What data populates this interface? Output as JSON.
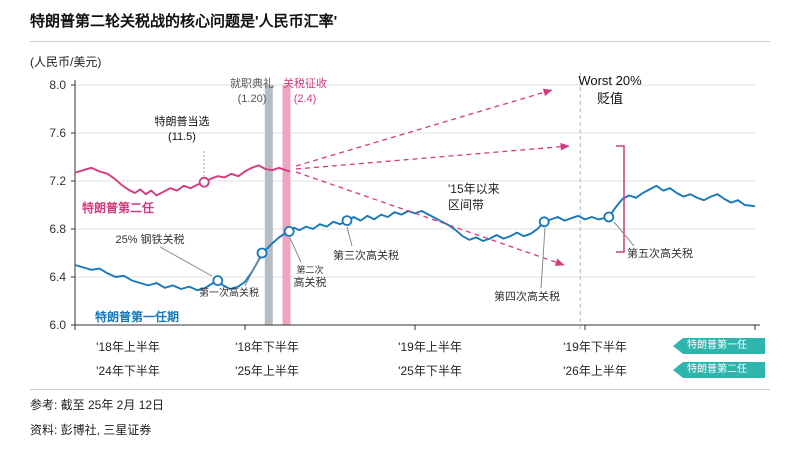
{
  "title": "特朗普第二轮关税战的核心问题是'人民币汇率'",
  "y_axis_unit": "(人民币/美元)",
  "annotations": {
    "elected_date": "(11.5)",
    "tariff2_l1": "第二次",
    "tariff2_l2": "高关税",
    "worst_l1": "Worst 20%",
    "worst_l2": "贬值",
    "range_l1": "'15年以来",
    "range_l2": "区间带"
  },
  "badges": [
    {
      "label": "特朗普第一任",
      "color": "#2fb5ae"
    },
    {
      "label": "特朗普第二任",
      "color": "#2fb5ae"
    }
  ],
  "footer": {
    "reference": "参考: 截至 25年 2月 12日",
    "source": "资料: 彭博社, 三星证券"
  },
  "chart_data": {
    "type": "line",
    "title": "特朗普第二轮关税战的核心问题是'人民币汇率'",
    "ylabel": "(人民币/美元)",
    "ylim": [
      6.0,
      8.0
    ],
    "yticks": [
      6.0,
      6.4,
      6.8,
      7.2,
      7.6,
      8.0
    ],
    "ytick_labels": [
      "6.0",
      "6.4",
      "6.8",
      "7.2",
      "7.6",
      "8.0"
    ],
    "x_axis_rows": [
      [
        "'18年上半年",
        "'18年下半年",
        "'19年上半年",
        "'19年下半年"
      ],
      [
        "'24年下半年",
        "'25年上半年",
        "'25年下半年",
        "'26年上半年"
      ]
    ],
    "projection_x": 0.743,
    "series": [
      {
        "name": "特朗普第一任期",
        "color": "#1779ba",
        "points": [
          [
            0,
            6.5
          ],
          [
            0.012,
            6.48
          ],
          [
            0.024,
            6.46
          ],
          [
            0.036,
            6.47
          ],
          [
            0.048,
            6.43
          ],
          [
            0.06,
            6.4
          ],
          [
            0.072,
            6.41
          ],
          [
            0.084,
            6.37
          ],
          [
            0.096,
            6.35
          ],
          [
            0.108,
            6.33
          ],
          [
            0.12,
            6.35
          ],
          [
            0.132,
            6.31
          ],
          [
            0.144,
            6.33
          ],
          [
            0.156,
            6.3
          ],
          [
            0.168,
            6.32
          ],
          [
            0.18,
            6.29
          ],
          [
            0.192,
            6.31
          ],
          [
            0.2,
            6.34
          ],
          [
            0.21,
            6.37
          ],
          [
            0.218,
            6.33
          ],
          [
            0.228,
            6.3
          ],
          [
            0.24,
            6.32
          ],
          [
            0.25,
            6.36
          ],
          [
            0.26,
            6.44
          ],
          [
            0.27,
            6.54
          ],
          [
            0.275,
            6.6
          ],
          [
            0.283,
            6.64
          ],
          [
            0.29,
            6.68
          ],
          [
            0.3,
            6.73
          ],
          [
            0.308,
            6.76
          ],
          [
            0.315,
            6.78
          ],
          [
            0.322,
            6.81
          ],
          [
            0.33,
            6.79
          ],
          [
            0.34,
            6.82
          ],
          [
            0.35,
            6.8
          ],
          [
            0.36,
            6.84
          ],
          [
            0.37,
            6.82
          ],
          [
            0.38,
            6.86
          ],
          [
            0.39,
            6.84
          ],
          [
            0.4,
            6.87
          ],
          [
            0.41,
            6.9
          ],
          [
            0.42,
            6.87
          ],
          [
            0.43,
            6.91
          ],
          [
            0.44,
            6.88
          ],
          [
            0.45,
            6.92
          ],
          [
            0.46,
            6.9
          ],
          [
            0.47,
            6.94
          ],
          [
            0.48,
            6.92
          ],
          [
            0.49,
            6.95
          ],
          [
            0.5,
            6.93
          ],
          [
            0.51,
            6.95
          ],
          [
            0.52,
            6.92
          ],
          [
            0.53,
            6.89
          ],
          [
            0.54,
            6.86
          ],
          [
            0.55,
            6.83
          ],
          [
            0.56,
            6.79
          ],
          [
            0.57,
            6.74
          ],
          [
            0.58,
            6.71
          ],
          [
            0.59,
            6.73
          ],
          [
            0.6,
            6.7
          ],
          [
            0.61,
            6.72
          ],
          [
            0.62,
            6.75
          ],
          [
            0.63,
            6.72
          ],
          [
            0.64,
            6.74
          ],
          [
            0.65,
            6.77
          ],
          [
            0.66,
            6.74
          ],
          [
            0.67,
            6.76
          ],
          [
            0.68,
            6.8
          ],
          [
            0.69,
            6.86
          ],
          [
            0.7,
            6.88
          ],
          [
            0.71,
            6.9
          ],
          [
            0.72,
            6.87
          ],
          [
            0.73,
            6.89
          ],
          [
            0.74,
            6.91
          ],
          [
            0.75,
            6.88
          ],
          [
            0.76,
            6.9
          ],
          [
            0.77,
            6.88
          ],
          [
            0.785,
            6.9
          ],
          [
            0.795,
            6.98
          ],
          [
            0.805,
            7.05
          ],
          [
            0.815,
            7.08
          ],
          [
            0.825,
            7.06
          ],
          [
            0.835,
            7.1
          ],
          [
            0.845,
            7.13
          ],
          [
            0.855,
            7.16
          ],
          [
            0.865,
            7.12
          ],
          [
            0.875,
            7.14
          ],
          [
            0.885,
            7.1
          ],
          [
            0.895,
            7.07
          ],
          [
            0.905,
            7.09
          ],
          [
            0.915,
            7.06
          ],
          [
            0.925,
            7.04
          ],
          [
            0.935,
            7.07
          ],
          [
            0.945,
            7.09
          ],
          [
            0.955,
            7.05
          ],
          [
            0.965,
            7.02
          ],
          [
            0.975,
            7.04
          ],
          [
            0.985,
            7.0
          ],
          [
            1,
            6.99
          ]
        ]
      },
      {
        "name": "特朗普第二任",
        "color": "#d23c7e",
        "points": [
          [
            0,
            7.27
          ],
          [
            0.012,
            7.29
          ],
          [
            0.024,
            7.31
          ],
          [
            0.036,
            7.28
          ],
          [
            0.048,
            7.26
          ],
          [
            0.058,
            7.22
          ],
          [
            0.068,
            7.17
          ],
          [
            0.078,
            7.13
          ],
          [
            0.088,
            7.1
          ],
          [
            0.096,
            7.13
          ],
          [
            0.104,
            7.09
          ],
          [
            0.112,
            7.12
          ],
          [
            0.12,
            7.08
          ],
          [
            0.13,
            7.11
          ],
          [
            0.14,
            7.14
          ],
          [
            0.15,
            7.12
          ],
          [
            0.16,
            7.16
          ],
          [
            0.17,
            7.14
          ],
          [
            0.18,
            7.17
          ],
          [
            0.19,
            7.19
          ],
          [
            0.2,
            7.22
          ],
          [
            0.21,
            7.24
          ],
          [
            0.22,
            7.23
          ],
          [
            0.23,
            7.26
          ],
          [
            0.24,
            7.24
          ],
          [
            0.25,
            7.28
          ],
          [
            0.26,
            7.31
          ],
          [
            0.27,
            7.33
          ],
          [
            0.28,
            7.3
          ],
          [
            0.29,
            7.29
          ],
          [
            0.3,
            7.31
          ],
          [
            0.31,
            7.29
          ],
          [
            0.316,
            7.28
          ]
        ]
      }
    ],
    "markers": [
      {
        "series": 0,
        "x": 0.21,
        "value": 6.37,
        "label": "25% 钢铁关税"
      },
      {
        "series": 0,
        "x": 0.275,
        "value": 6.6,
        "label": "第一次高关税"
      },
      {
        "series": 0,
        "x": 0.315,
        "value": 6.78,
        "label": "第二次高关税"
      },
      {
        "series": 0,
        "x": 0.4,
        "value": 6.87,
        "label": "第三次高关税"
      },
      {
        "series": 0,
        "x": 0.69,
        "value": 6.86,
        "label": "第四次高关税"
      },
      {
        "series": 0,
        "x": 0.785,
        "value": 6.9,
        "label": "第五次高关税"
      },
      {
        "series": 1,
        "x": 0.19,
        "value": 7.19,
        "label": "特朗普当选"
      }
    ],
    "events": [
      {
        "name": "就职典礼",
        "date": "(1.20)",
        "x": 0.285,
        "band_color": "#b6bcc4"
      },
      {
        "name": "关税征收",
        "date": "(2.4)",
        "x": 0.311,
        "band_color": "#eba6c6"
      }
    ]
  }
}
